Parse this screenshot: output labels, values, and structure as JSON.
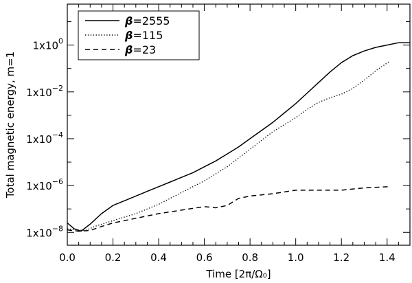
{
  "chart_data": {
    "type": "line",
    "xlabel": "Time [2π/Ω₀]",
    "ylabel": "Total magnetic energy, m=1",
    "xlim": [
      0.0,
      1.5
    ],
    "ylim_log10": [
      -8.55,
      1.75
    ],
    "y_scale": "log",
    "grid": false,
    "legend_position": "top-left",
    "x_ticks": [
      {
        "value": 0.0,
        "label": "0.0"
      },
      {
        "value": 0.2,
        "label": "0.2"
      },
      {
        "value": 0.4,
        "label": "0.4"
      },
      {
        "value": 0.6,
        "label": "0.6"
      },
      {
        "value": 0.8,
        "label": "0.8"
      },
      {
        "value": 1.0,
        "label": "1.0"
      },
      {
        "value": 1.2,
        "label": "1.2"
      },
      {
        "value": 1.4,
        "label": "1.4"
      }
    ],
    "y_ticks": [
      {
        "log10": -8,
        "mantissa": "1x10",
        "exponent": "−8"
      },
      {
        "log10": -6,
        "mantissa": "1x10",
        "exponent": "−6"
      },
      {
        "log10": -4,
        "mantissa": "1x10",
        "exponent": "−4"
      },
      {
        "log10": -2,
        "mantissa": "1x10",
        "exponent": "−2"
      },
      {
        "log10": 0,
        "mantissa": "1x10",
        "exponent": "0"
      }
    ],
    "series": [
      {
        "name": "β=2555",
        "legend_symbol": "β",
        "legend_value": "=2555",
        "dash": "solid",
        "points": [
          [
            0.0,
            -7.6
          ],
          [
            0.03,
            -7.85
          ],
          [
            0.06,
            -7.95
          ],
          [
            0.1,
            -7.65
          ],
          [
            0.15,
            -7.2
          ],
          [
            0.2,
            -6.85
          ],
          [
            0.25,
            -6.65
          ],
          [
            0.3,
            -6.45
          ],
          [
            0.35,
            -6.25
          ],
          [
            0.4,
            -6.05
          ],
          [
            0.45,
            -5.85
          ],
          [
            0.5,
            -5.65
          ],
          [
            0.55,
            -5.45
          ],
          [
            0.6,
            -5.2
          ],
          [
            0.65,
            -4.95
          ],
          [
            0.7,
            -4.65
          ],
          [
            0.75,
            -4.35
          ],
          [
            0.8,
            -4.0
          ],
          [
            0.85,
            -3.65
          ],
          [
            0.9,
            -3.3
          ],
          [
            0.95,
            -2.9
          ],
          [
            1.0,
            -2.5
          ],
          [
            1.05,
            -2.05
          ],
          [
            1.1,
            -1.6
          ],
          [
            1.15,
            -1.15
          ],
          [
            1.2,
            -0.75
          ],
          [
            1.25,
            -0.45
          ],
          [
            1.3,
            -0.25
          ],
          [
            1.35,
            -0.1
          ],
          [
            1.4,
            0.0
          ],
          [
            1.45,
            0.1
          ],
          [
            1.5,
            0.1
          ]
        ]
      },
      {
        "name": "β=115",
        "legend_symbol": "β",
        "legend_value": "=115",
        "dash": "dotted",
        "points": [
          [
            0.0,
            -7.85
          ],
          [
            0.04,
            -7.9
          ],
          [
            0.08,
            -7.92
          ],
          [
            0.12,
            -7.75
          ],
          [
            0.2,
            -7.5
          ],
          [
            0.3,
            -7.2
          ],
          [
            0.4,
            -6.8
          ],
          [
            0.5,
            -6.3
          ],
          [
            0.6,
            -5.8
          ],
          [
            0.7,
            -5.2
          ],
          [
            0.8,
            -4.45
          ],
          [
            0.9,
            -3.7
          ],
          [
            1.0,
            -3.1
          ],
          [
            1.05,
            -2.75
          ],
          [
            1.1,
            -2.45
          ],
          [
            1.15,
            -2.25
          ],
          [
            1.2,
            -2.1
          ],
          [
            1.25,
            -1.85
          ],
          [
            1.3,
            -1.5
          ],
          [
            1.35,
            -1.1
          ],
          [
            1.41,
            -0.7
          ]
        ]
      },
      {
        "name": "β=23",
        "legend_symbol": "β",
        "legend_value": "=23",
        "dash": "dashed",
        "points": [
          [
            0.0,
            -7.9
          ],
          [
            0.05,
            -7.95
          ],
          [
            0.1,
            -7.92
          ],
          [
            0.15,
            -7.75
          ],
          [
            0.2,
            -7.6
          ],
          [
            0.3,
            -7.4
          ],
          [
            0.4,
            -7.2
          ],
          [
            0.5,
            -7.05
          ],
          [
            0.6,
            -6.9
          ],
          [
            0.65,
            -6.95
          ],
          [
            0.7,
            -6.85
          ],
          [
            0.75,
            -6.55
          ],
          [
            0.8,
            -6.45
          ],
          [
            0.9,
            -6.35
          ],
          [
            1.0,
            -6.2
          ],
          [
            1.1,
            -6.2
          ],
          [
            1.2,
            -6.2
          ],
          [
            1.3,
            -6.1
          ],
          [
            1.41,
            -6.05
          ]
        ]
      }
    ]
  }
}
